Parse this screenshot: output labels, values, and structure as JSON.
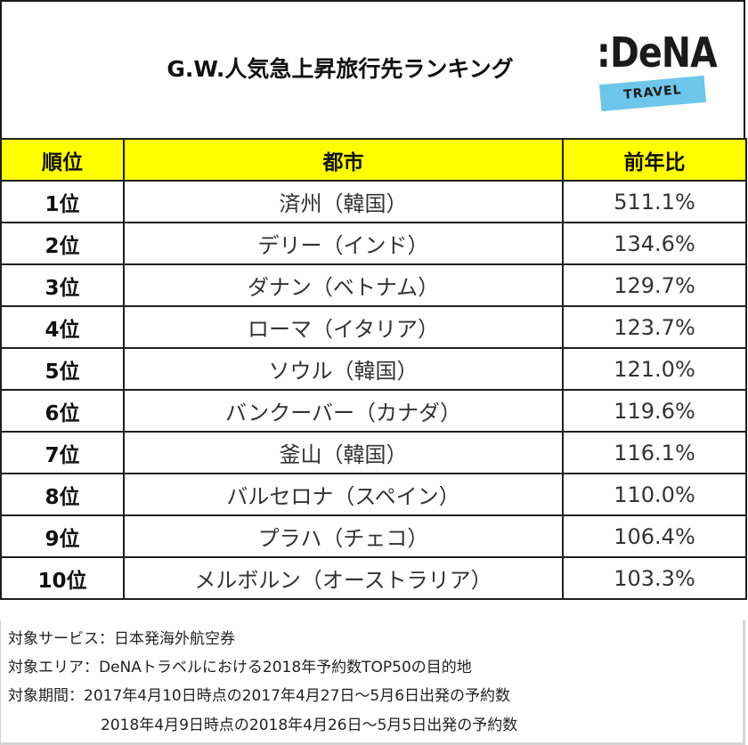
{
  "header": {
    "title": "G.W.人気急上昇旅行先ランキング",
    "logo": {
      "brand": ":DeNA",
      "sub": "TRAVEL",
      "band_color": "#6ec6ea"
    }
  },
  "table": {
    "header_color": "#ffff00",
    "columns": [
      "順位",
      "都市",
      "前年比"
    ],
    "rows": [
      {
        "rank": "1位",
        "city": "済州（韓国）",
        "ratio": "511.1%"
      },
      {
        "rank": "2位",
        "city": "デリー（インド）",
        "ratio": "134.6%"
      },
      {
        "rank": "3位",
        "city": "ダナン（ベトナム）",
        "ratio": "129.7%"
      },
      {
        "rank": "4位",
        "city": "ローマ（イタリア）",
        "ratio": "123.7%"
      },
      {
        "rank": "5位",
        "city": "ソウル（韓国）",
        "ratio": "121.0%"
      },
      {
        "rank": "6位",
        "city": "バンクーバー（カナダ）",
        "ratio": "119.6%"
      },
      {
        "rank": "7位",
        "city": "釜山（韓国）",
        "ratio": "116.1%"
      },
      {
        "rank": "8位",
        "city": "バルセロナ（スペイン）",
        "ratio": "110.0%"
      },
      {
        "rank": "9位",
        "city": "プラハ（チェコ）",
        "ratio": "106.4%"
      },
      {
        "rank": "10位",
        "city": "メルボルン（オーストラリア）",
        "ratio": "103.3%"
      }
    ]
  },
  "notes": {
    "service": "対象サービス：日本発海外航空券",
    "area": "対象エリア：DeNAトラベルにおける2018年予約数TOP50の目的地",
    "period_1": "対象期間：2017年4月10日時点の2017年4月27日～5月6日出発の予約数",
    "period_2": "2018年4月9日時点の2018年4月26日～5月5日出発の予約数"
  }
}
